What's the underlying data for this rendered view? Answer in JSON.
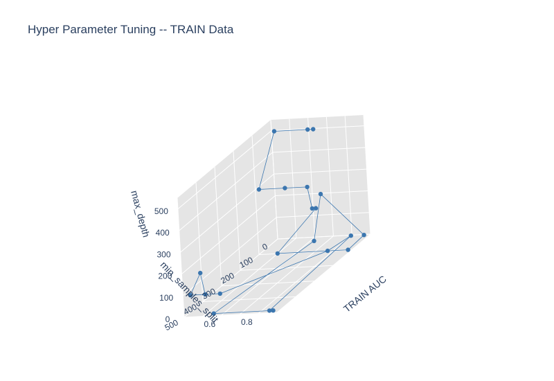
{
  "chart_data": {
    "type": "scatter3d-lines",
    "title": "Hyper Parameter Tuning -- TRAIN Data",
    "axes": {
      "x": {
        "label": "TRAIN AUC",
        "range": [
          0.5,
          1.0
        ],
        "ticks": [
          "0.6",
          "0.8"
        ],
        "tick_values": [
          0.6,
          0.8
        ]
      },
      "y": {
        "label": "min_samples_split",
        "range": [
          0,
          500
        ],
        "ticks": [
          "0",
          "100",
          "200",
          "300",
          "400",
          "500"
        ],
        "tick_values": [
          0,
          100,
          200,
          300,
          400,
          500
        ]
      },
      "z": {
        "label": "max_depth",
        "range": [
          0,
          550
        ],
        "ticks": [
          "0",
          "100",
          "200",
          "300",
          "400",
          "500"
        ],
        "tick_values": [
          0,
          100,
          200,
          300,
          400,
          500
        ]
      }
    },
    "marker_color": "#3b76af",
    "line_color": "#3b76af",
    "pane_color": "#e5e5e5",
    "points": [
      {
        "x": 0.7,
        "y": 5,
        "z": 500
      },
      {
        "x": 0.73,
        "y": 5,
        "z": 500
      },
      {
        "x": 0.52,
        "y": 5,
        "z": 500
      },
      {
        "x": 0.52,
        "y": 100,
        "z": 300
      },
      {
        "x": 0.66,
        "y": 100,
        "z": 300
      },
      {
        "x": 0.78,
        "y": 100,
        "z": 300
      },
      {
        "x": 0.8,
        "y": 100,
        "z": 200
      },
      {
        "x": 0.82,
        "y": 100,
        "z": 200
      },
      {
        "x": 0.6,
        "y": 100,
        "z": 1
      },
      {
        "x": 0.98,
        "y": 100,
        "z": 1
      },
      {
        "x": 0.97,
        "y": 5,
        "z": 1
      },
      {
        "x": 0.75,
        "y": 5,
        "z": 200
      },
      {
        "x": 0.8,
        "y": 100,
        "z": 50
      },
      {
        "x": 0.66,
        "y": 500,
        "z": 10
      },
      {
        "x": 0.98,
        "y": 500,
        "z": 10
      },
      {
        "x": 0.96,
        "y": 500,
        "z": 10
      },
      {
        "x": 0.9,
        "y": 5,
        "z": 1
      },
      {
        "x": 0.87,
        "y": 100,
        "z": 1
      },
      {
        "x": 0.7,
        "y": 500,
        "z": 100
      },
      {
        "x": 0.54,
        "y": 500,
        "z": 100
      },
      {
        "x": 0.6,
        "y": 500,
        "z": 200
      },
      {
        "x": 0.62,
        "y": 500,
        "z": 100
      }
    ]
  }
}
